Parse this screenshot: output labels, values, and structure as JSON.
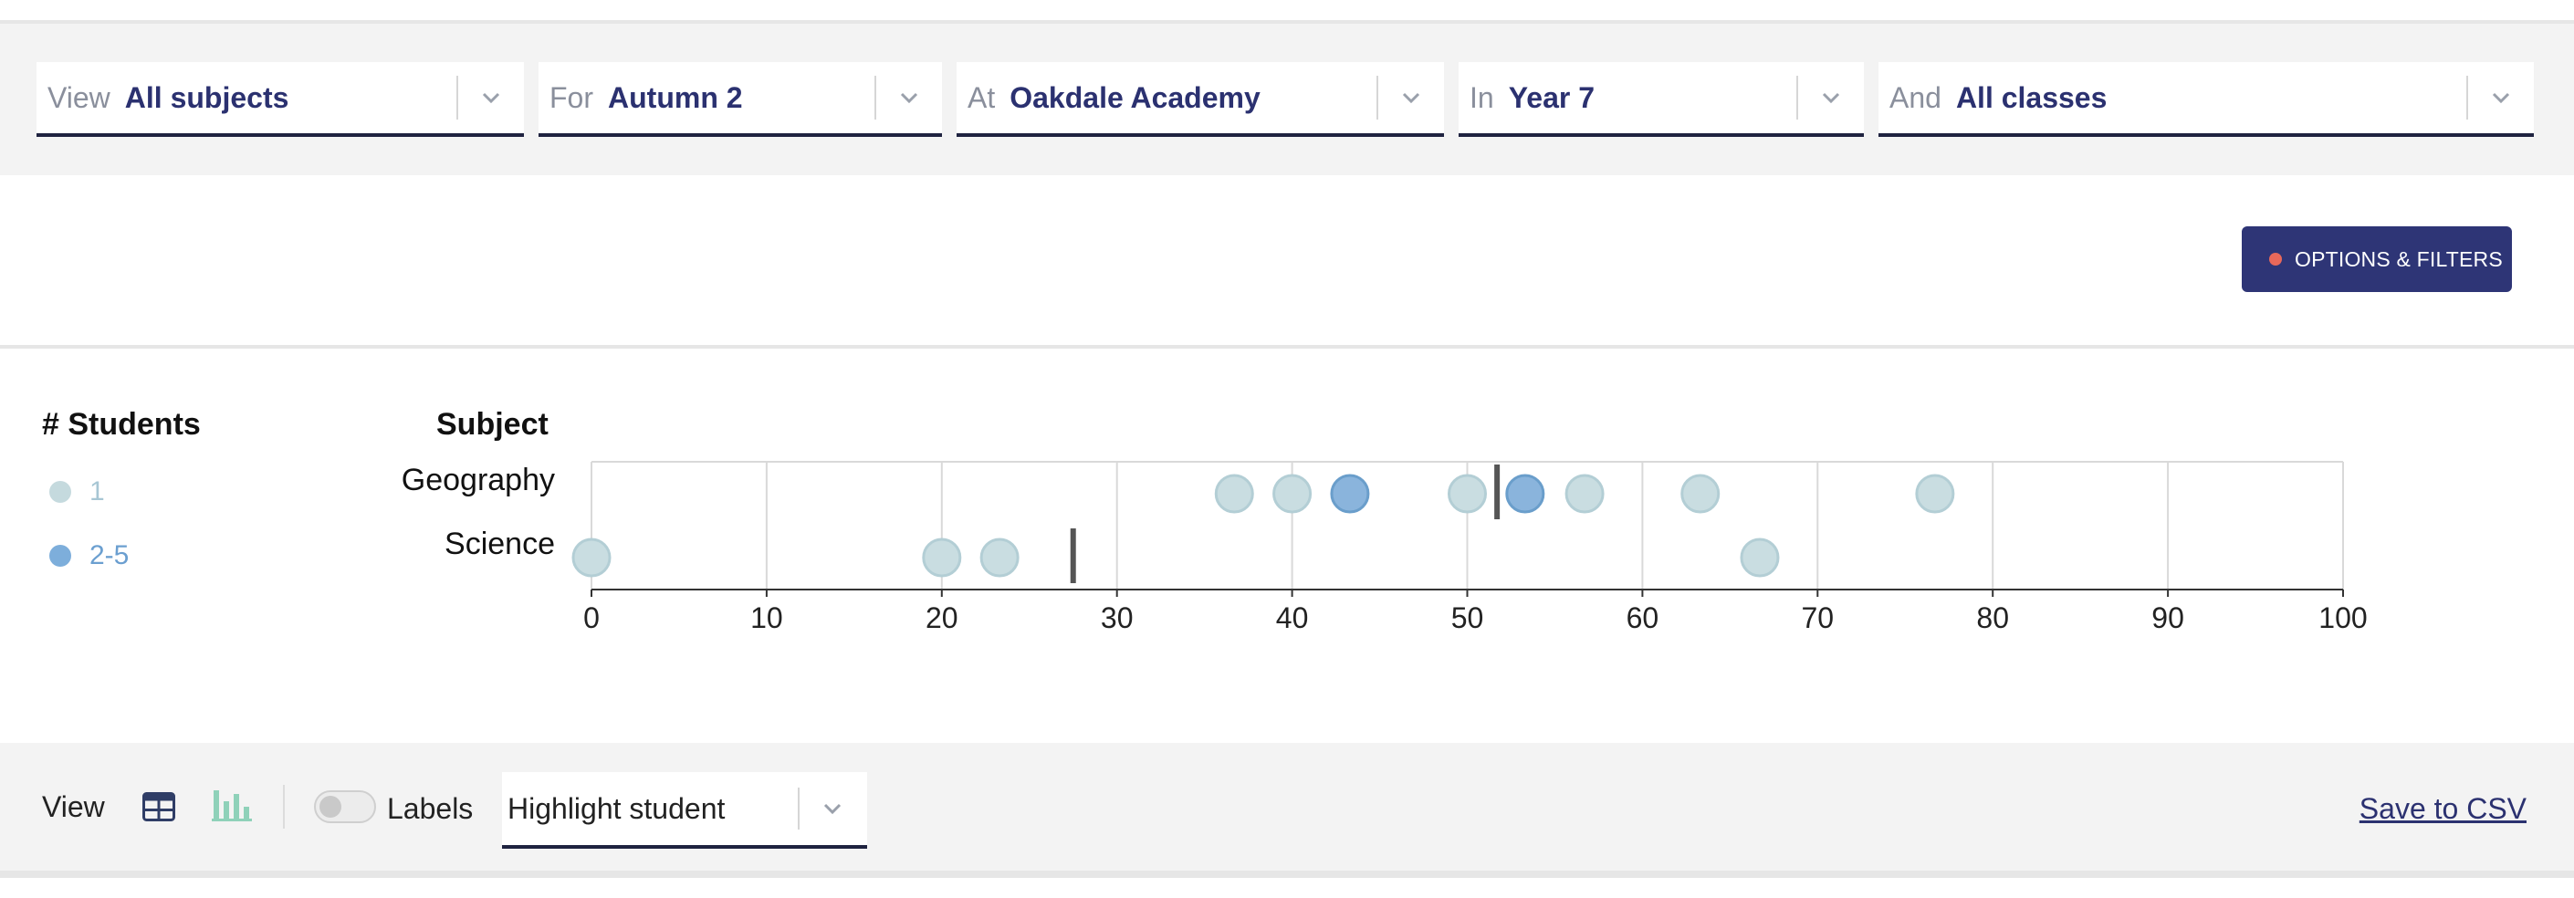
{
  "filters": [
    {
      "prefix": "View",
      "value": "All subjects"
    },
    {
      "prefix": "For",
      "value": "Autumn 2"
    },
    {
      "prefix": "At",
      "value": "Oakdale Academy"
    },
    {
      "prefix": "In",
      "value": "Year 7"
    },
    {
      "prefix": "And",
      "value": "All classes"
    }
  ],
  "options_button": {
    "label": "OPTIONS & FILTERS",
    "dot_color": "#e8685a"
  },
  "legend": {
    "title": "# Students",
    "items": [
      {
        "label": "1",
        "color": "#c5dade",
        "text_color": "#a7c6d4"
      },
      {
        "label": "2-5",
        "color": "#7daedb",
        "text_color": "#6b9fd0"
      }
    ]
  },
  "subject_header": "Subject",
  "chart_data": {
    "type": "scatter",
    "categories": [
      "Geography",
      "Science"
    ],
    "xlim": [
      0,
      100
    ],
    "xticks": [
      0,
      10,
      20,
      30,
      40,
      50,
      60,
      70,
      80,
      90,
      100
    ],
    "grid": true,
    "series": [
      {
        "category": "Geography",
        "points": [
          {
            "x": 36.7,
            "group": "1"
          },
          {
            "x": 40,
            "group": "1"
          },
          {
            "x": 43.3,
            "group": "2-5"
          },
          {
            "x": 50,
            "group": "1"
          },
          {
            "x": 53.3,
            "group": "2-5"
          },
          {
            "x": 56.7,
            "group": "1"
          },
          {
            "x": 63.3,
            "group": "1"
          },
          {
            "x": 76.7,
            "group": "1"
          }
        ],
        "marker": 51.7
      },
      {
        "category": "Science",
        "points": [
          {
            "x": 0,
            "group": "1"
          },
          {
            "x": 20,
            "group": "1"
          },
          {
            "x": 23.3,
            "group": "1"
          },
          {
            "x": 66.7,
            "group": "1"
          }
        ],
        "marker": 27.5
      }
    ]
  },
  "bottom": {
    "view_label": "View",
    "labels_label": "Labels",
    "highlight_value": "Highlight student",
    "save_csv": "Save to CSV"
  },
  "icons": [
    "chevron-down-icon",
    "table-icon",
    "bar-chart-icon",
    "toggle-switch"
  ]
}
